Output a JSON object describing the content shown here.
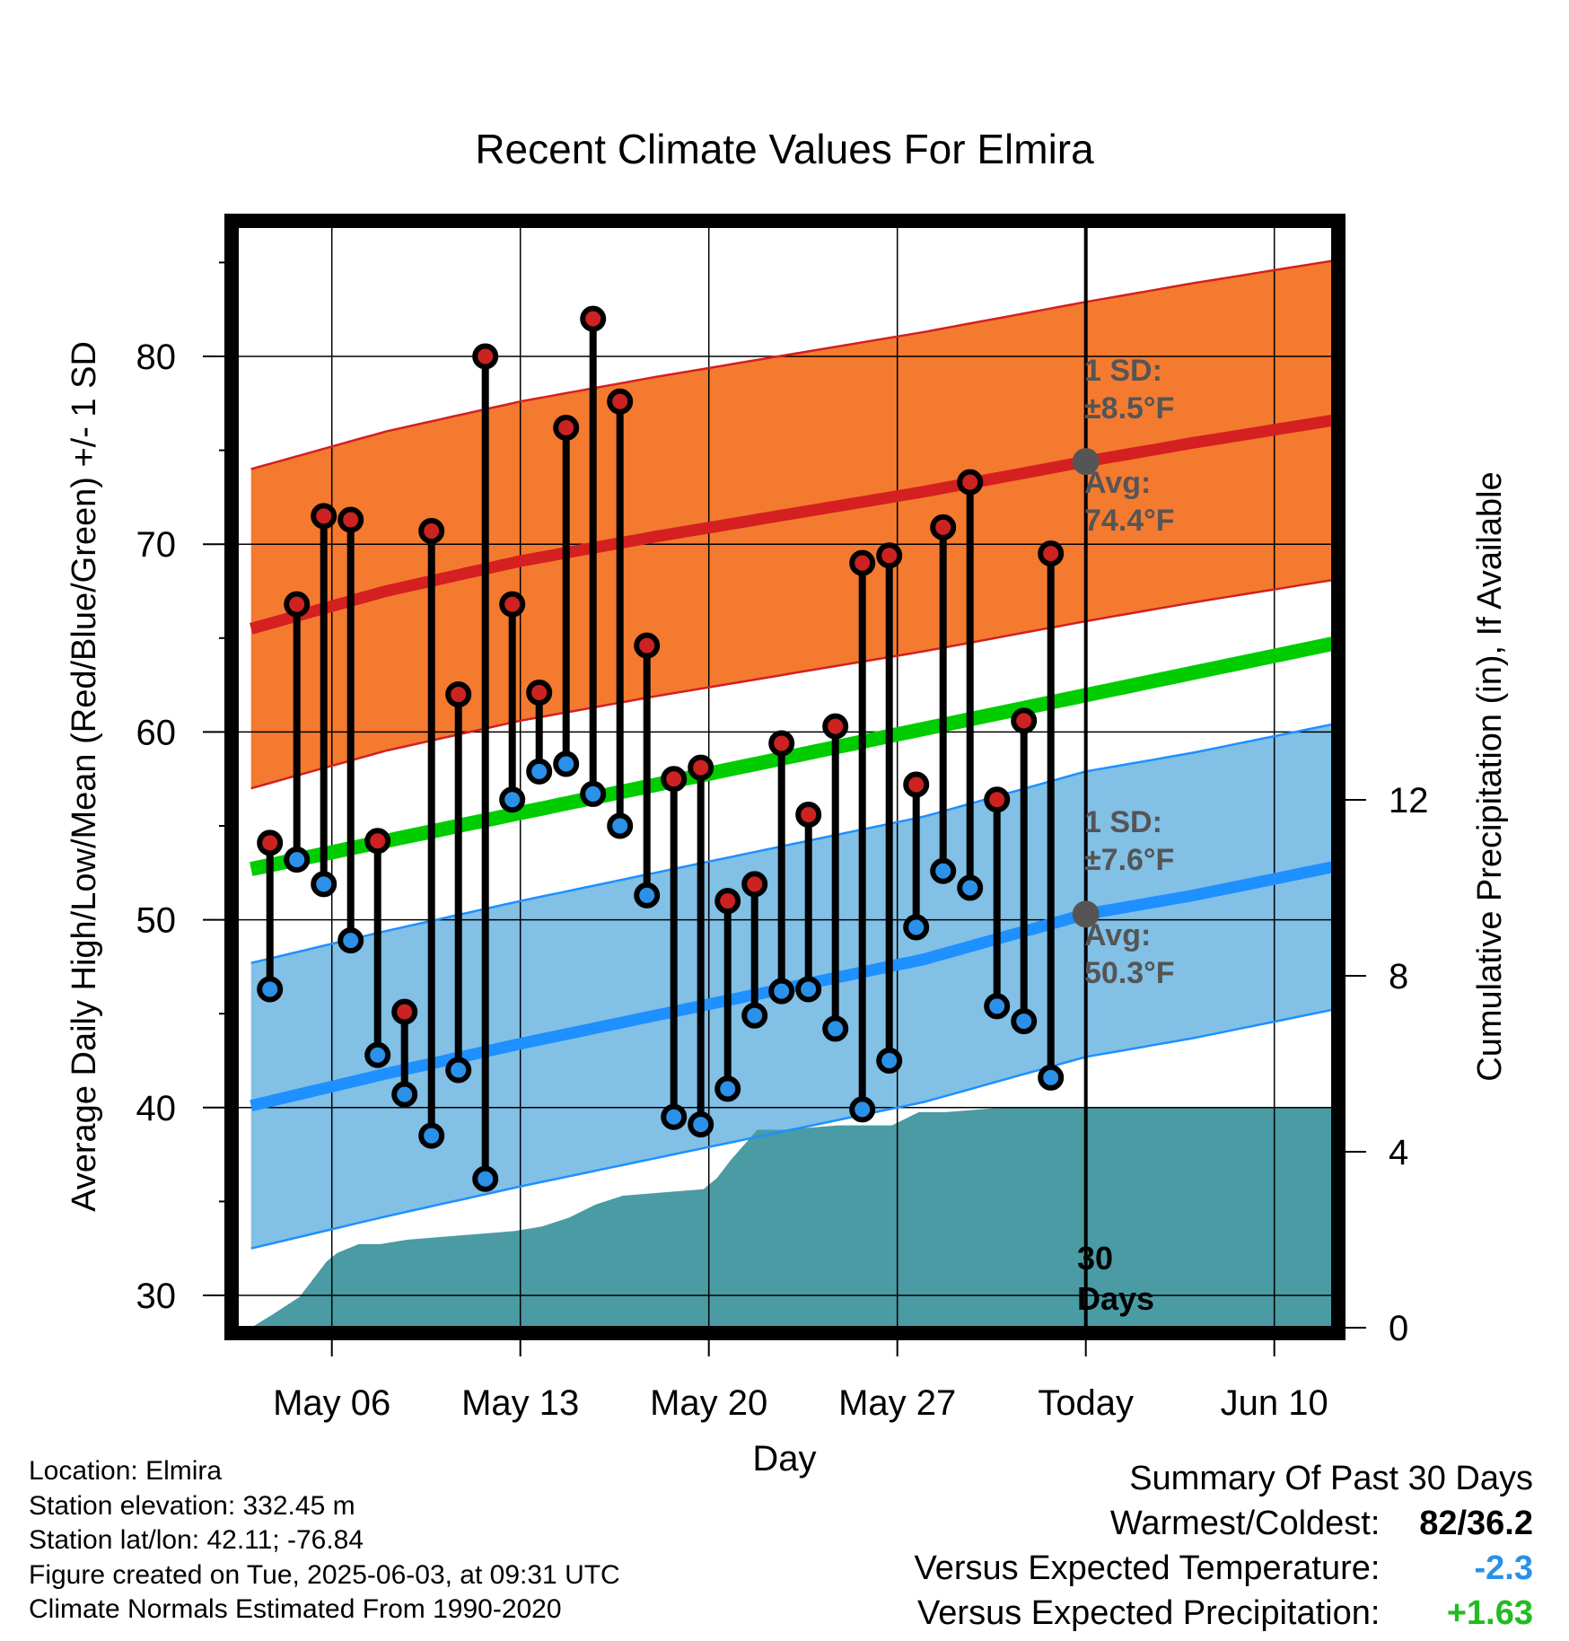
{
  "title": "Recent Climate Values For Elmira",
  "y_left_label": "Average Daily High/Low/Mean (Red/Blue/Green) +/- 1 SD",
  "y_right_label": "Cumulative Precipitation (in), If Available",
  "x_label": "Day",
  "today_marker": {
    "label_line1": "30",
    "label_line2": "Days"
  },
  "annotations": {
    "high_sd_l1": "1 SD:",
    "high_sd_l2": "±8.5°F",
    "high_avg_l1": "Avg:",
    "high_avg_l2": "74.4°F",
    "low_sd_l1": "1 SD:",
    "low_sd_l2": "±7.6°F",
    "low_avg_l1": "Avg:",
    "low_avg_l2": "50.3°F"
  },
  "info": {
    "location": "Location: Elmira",
    "elevation": "Station elevation: 332.45 m",
    "latlon": "Station lat/lon: 42.11; -76.84",
    "created": "Figure created on Tue, 2025-06-03, at 09:31 UTC",
    "normals": "Climate Normals Estimated From 1990-2020"
  },
  "summary": {
    "title": "Summary Of Past 30 Days",
    "warm_cold_label": "Warmest/Coldest:",
    "warm_cold_value": "82/36.2",
    "temp_label": "Versus Expected Temperature:",
    "temp_value": "-2.3",
    "precip_label": "Versus Expected Precipitation:",
    "precip_value": "+1.63"
  },
  "colors": {
    "high_band": "#f47a30",
    "high_line": "#d42020",
    "low_band": "#82c0e6",
    "low_line": "#1e90ff",
    "mean_line": "#00cc00",
    "precip_fill": "#4a9ba4",
    "high_dot": "#cc2222",
    "low_dot": "#2b90e8",
    "temp_value": "#2b90e8",
    "precip_value": "#22bb22"
  },
  "chart_data": {
    "type": "line",
    "x_start_day": 0,
    "x_end_day": 41.5,
    "x_ticks": [
      {
        "day": 3,
        "label": "May 06"
      },
      {
        "day": 10,
        "label": "May 13"
      },
      {
        "day": 17,
        "label": "May 20"
      },
      {
        "day": 24,
        "label": "May 27"
      },
      {
        "day": 31,
        "label": "Today"
      },
      {
        "day": 38,
        "label": "Jun 10"
      }
    ],
    "today_day": 31,
    "y_left_range": [
      28.5,
      87
    ],
    "y_left_ticks": [
      30,
      40,
      50,
      60,
      70,
      80
    ],
    "y_right_range": [
      0,
      16
    ],
    "y_right_ticks": [
      0,
      4,
      8,
      12
    ],
    "daily": [
      {
        "day": 0.7,
        "high": 54.1,
        "low": 46.3
      },
      {
        "day": 1.7,
        "high": 66.8,
        "low": 53.2
      },
      {
        "day": 2.7,
        "high": 71.5,
        "low": 51.9
      },
      {
        "day": 3.7,
        "high": 71.3,
        "low": 48.9
      },
      {
        "day": 4.7,
        "high": 54.2,
        "low": 42.8
      },
      {
        "day": 5.7,
        "high": 45.1,
        "low": 40.7
      },
      {
        "day": 6.7,
        "high": 70.7,
        "low": 38.5
      },
      {
        "day": 7.7,
        "high": 62.0,
        "low": 42.0
      },
      {
        "day": 8.7,
        "high": 80.0,
        "low": 36.2
      },
      {
        "day": 9.7,
        "high": 66.8,
        "low": 56.4
      },
      {
        "day": 10.7,
        "high": 62.1,
        "low": 57.9
      },
      {
        "day": 11.7,
        "high": 76.2,
        "low": 58.3
      },
      {
        "day": 12.7,
        "high": 82.0,
        "low": 56.7
      },
      {
        "day": 13.7,
        "high": 77.6,
        "low": 55.0
      },
      {
        "day": 14.7,
        "high": 64.6,
        "low": 51.3
      },
      {
        "day": 15.7,
        "high": 57.5,
        "low": 39.5
      },
      {
        "day": 16.7,
        "high": 58.1,
        "low": 39.1
      },
      {
        "day": 17.7,
        "high": 51.0,
        "low": 41.0
      },
      {
        "day": 18.7,
        "high": 51.9,
        "low": 44.9
      },
      {
        "day": 19.7,
        "high": 59.4,
        "low": 46.2
      },
      {
        "day": 20.7,
        "high": 55.6,
        "low": 46.3
      },
      {
        "day": 21.7,
        "high": 60.3,
        "low": 44.2
      },
      {
        "day": 22.7,
        "high": 69.0,
        "low": 39.9
      },
      {
        "day": 23.7,
        "high": 69.4,
        "low": 42.5
      },
      {
        "day": 24.7,
        "high": 57.2,
        "low": 49.6
      },
      {
        "day": 25.7,
        "high": 70.9,
        "low": 52.6
      },
      {
        "day": 26.7,
        "high": 73.3,
        "low": 51.7
      },
      {
        "day": 27.7,
        "high": 56.4,
        "low": 45.4
      },
      {
        "day": 28.7,
        "high": 60.6,
        "low": 44.6
      },
      {
        "day": 29.7,
        "high": 69.5,
        "low": 41.6
      }
    ],
    "high_normal": {
      "days": [
        0,
        5,
        10,
        15,
        20,
        25,
        31,
        35,
        41.5
      ],
      "values": [
        65.5,
        67.5,
        69.1,
        70.4,
        71.6,
        72.8,
        74.4,
        75.4,
        76.9
      ]
    },
    "high_sd": 8.5,
    "low_normal": {
      "days": [
        0,
        5,
        10,
        15,
        20,
        25,
        31,
        35,
        41.5
      ],
      "values": [
        40.1,
        41.8,
        43.4,
        44.9,
        46.4,
        47.9,
        50.3,
        51.3,
        53.2
      ]
    },
    "low_sd": 7.6,
    "mean_normal": {
      "days": [
        0,
        41.5
      ],
      "values": [
        52.7,
        65.1
      ]
    },
    "precip_cumulative": {
      "days": [
        0,
        0.8,
        1.8,
        2.8,
        3.2,
        4.0,
        4.8,
        5.8,
        6.8,
        7.8,
        8.8,
        9.8,
        10.8,
        11.8,
        12.8,
        13.8,
        14.8,
        15.8,
        16.8,
        17.3,
        17.8,
        18.8,
        19.8,
        20.8,
        21.8,
        22.8,
        23.8,
        24.8,
        25.8,
        26.8,
        27.8,
        28.8,
        29.8,
        41.5
      ],
      "values": [
        0,
        0.3,
        0.7,
        1.5,
        1.7,
        1.9,
        1.9,
        2.0,
        2.05,
        2.1,
        2.15,
        2.2,
        2.3,
        2.5,
        2.8,
        3.0,
        3.05,
        3.1,
        3.15,
        3.4,
        3.8,
        4.5,
        4.5,
        4.55,
        4.6,
        4.6,
        4.6,
        4.9,
        4.9,
        4.95,
        5.0,
        5.0,
        5.0,
        5.0
      ]
    }
  }
}
